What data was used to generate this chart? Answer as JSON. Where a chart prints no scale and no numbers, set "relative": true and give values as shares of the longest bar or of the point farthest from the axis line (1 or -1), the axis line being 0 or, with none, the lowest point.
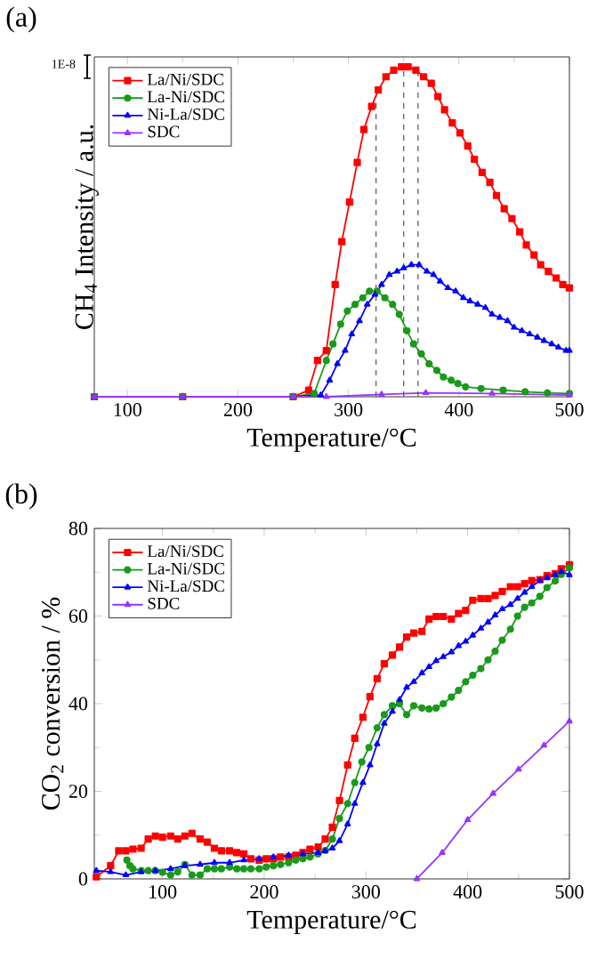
{
  "chart_data": [
    {
      "type": "line",
      "ylabel": "CH$_{4}$ Intensity / a.u.",
      "xlabel": "Temperature/°C",
      "relative": true,
      "tick_labels": "x",
      "legend": "top left",
      "annotations": [
        "(a)",
        "1E-8"
      ],
      "xlim": [
        70,
        500
      ],
      "xticks": [
        100,
        200,
        300,
        400,
        500
      ],
      "ref_lines": [
        {
          "axis": "x",
          "value": 325,
          "color": "#555555",
          "line_style": "dashed"
        },
        {
          "axis": "x",
          "value": 350,
          "color": "#555555",
          "line_style": "dashed"
        },
        {
          "axis": "x",
          "value": 363,
          "color": "#555555",
          "line_style": "dashed"
        }
      ],
      "series": [
        {
          "name": "La/Ni/SDC",
          "color": "#ff0000",
          "marker": "square",
          "x": [
            70,
            150,
            250,
            264,
            272,
            280,
            288,
            294,
            301,
            308,
            314,
            321,
            327,
            334,
            341,
            348,
            354,
            361,
            368,
            375,
            381,
            387,
            394,
            401,
            408,
            414,
            421,
            428,
            434,
            441,
            448,
            455,
            461,
            468,
            474,
            481,
            488,
            494,
            500
          ],
          "values": [
            0,
            0,
            0,
            0.02,
            0.11,
            0.14,
            0.34,
            0.47,
            0.59,
            0.71,
            0.81,
            0.88,
            0.93,
            0.97,
            0.99,
            1,
            1,
            0.99,
            0.97,
            0.95,
            0.91,
            0.87,
            0.83,
            0.8,
            0.76,
            0.72,
            0.68,
            0.65,
            0.61,
            0.57,
            0.54,
            0.5,
            0.46,
            0.43,
            0.4,
            0.38,
            0.36,
            0.34,
            0.33
          ]
        },
        {
          "name": "La-Ni/SDC",
          "color": "#1a9a1a",
          "marker": "circle",
          "x": [
            70,
            150,
            250,
            269,
            280,
            286,
            293,
            299,
            306,
            313,
            319,
            326,
            333,
            340,
            346,
            353,
            359,
            366,
            373,
            380,
            386,
            393,
            399,
            406,
            420,
            440,
            460,
            480,
            500
          ],
          "values": [
            0,
            0,
            0,
            0.01,
            0.11,
            0.16,
            0.22,
            0.26,
            0.28,
            0.3,
            0.32,
            0.32,
            0.3,
            0.28,
            0.25,
            0.2,
            0.16,
            0.13,
            0.1,
            0.08,
            0.06,
            0.05,
            0.04,
            0.03,
            0.025,
            0.02,
            0.015,
            0.012,
            0.01
          ]
        },
        {
          "name": "Ni-La/SDC",
          "color": "#0000ff",
          "marker": "triangle",
          "x": [
            70,
            150,
            250,
            275,
            283,
            290,
            297,
            303,
            310,
            317,
            324,
            330,
            337,
            344,
            350,
            357,
            364,
            371,
            377,
            383,
            390,
            397,
            404,
            410,
            417,
            424,
            430,
            437,
            444,
            450,
            457,
            464,
            471,
            477,
            484,
            490,
            497,
            500
          ],
          "values": [
            0,
            0,
            0,
            0.005,
            0.05,
            0.1,
            0.14,
            0.19,
            0.23,
            0.28,
            0.31,
            0.34,
            0.37,
            0.38,
            0.39,
            0.4,
            0.4,
            0.38,
            0.37,
            0.35,
            0.33,
            0.32,
            0.3,
            0.29,
            0.28,
            0.27,
            0.25,
            0.24,
            0.23,
            0.21,
            0.2,
            0.19,
            0.18,
            0.17,
            0.16,
            0.15,
            0.14,
            0.14
          ]
        },
        {
          "name": "SDC",
          "color": "#9933ff",
          "marker": "triangle",
          "x": [
            70,
            150,
            250,
            280,
            330,
            370,
            430,
            500
          ],
          "values": [
            0,
            0,
            0,
            0,
            0.007,
            0.012,
            0.01,
            0.005
          ]
        }
      ]
    },
    {
      "type": "line",
      "ylabel": "CO$_{2}$ conversion / %",
      "xlabel": "Temperature/°C",
      "legend": "top left",
      "annotations": [
        "(b)"
      ],
      "xlim": [
        33,
        500
      ],
      "xticks": [
        100,
        200,
        300,
        400,
        500
      ],
      "ylim": [
        0,
        80
      ],
      "yticks": [
        0,
        20,
        40,
        60,
        80
      ],
      "series": [
        {
          "name": "La/Ni/SDC",
          "color": "#ff0000",
          "marker": "square",
          "x": [
            35,
            49,
            57,
            64,
            71,
            79,
            86,
            93,
            100,
            108,
            115,
            122,
            129,
            137,
            144,
            151,
            158,
            166,
            173,
            180,
            187,
            195,
            202,
            209,
            216,
            224,
            231,
            238,
            245,
            253,
            260,
            267,
            274,
            282,
            289,
            297,
            304,
            311,
            318,
            326,
            333,
            340,
            347,
            355,
            362,
            369,
            376,
            384,
            391,
            398,
            405,
            413,
            420,
            427,
            434,
            442,
            449,
            456,
            463,
            471,
            478,
            486,
            492,
            500
          ],
          "values": [
            0.5,
            3,
            6.4,
            6.4,
            6.8,
            7,
            9.1,
            9.8,
            9.5,
            9.8,
            9.1,
            9.8,
            10.4,
            9.1,
            8.4,
            7,
            6.4,
            6.4,
            6,
            5.7,
            4.6,
            4.3,
            4.6,
            4.6,
            5,
            5,
            5.4,
            6,
            6.8,
            7.3,
            9.1,
            11.8,
            17.9,
            26,
            32.1,
            36.9,
            41.6,
            45.7,
            49.1,
            51.1,
            52.9,
            55.2,
            56.1,
            56.5,
            59.3,
            59.9,
            59.9,
            59.3,
            60.6,
            61.3,
            63.6,
            64,
            64,
            64.7,
            65.6,
            66.7,
            66.7,
            67.4,
            68.1,
            68.3,
            69.2,
            69.7,
            70.8,
            71.7
          ]
        },
        {
          "name": "La-Ni/SDC",
          "color": "#1a9a1a",
          "marker": "circle",
          "x": [
            65,
            68,
            71,
            79,
            86,
            93,
            100,
            108,
            115,
            122,
            129,
            137,
            144,
            151,
            158,
            166,
            173,
            180,
            187,
            195,
            202,
            209,
            216,
            224,
            231,
            238,
            245,
            253,
            260,
            267,
            274,
            282,
            289,
            296,
            303,
            311,
            318,
            326,
            333,
            340,
            347,
            355,
            362,
            369,
            376,
            384,
            391,
            398,
            405,
            413,
            420,
            427,
            434,
            442,
            449,
            456,
            463,
            471,
            478,
            486,
            492,
            500
          ],
          "values": [
            4.3,
            3,
            2.3,
            1.9,
            1.9,
            1.9,
            1.5,
            0.9,
            1.6,
            3.3,
            0.9,
            0.9,
            2.3,
            2.3,
            2.3,
            2.7,
            2.3,
            2.3,
            2.3,
            2.3,
            2.7,
            3,
            3.3,
            3.7,
            4.3,
            4.6,
            5,
            5.7,
            6.5,
            9.1,
            13.8,
            17.2,
            22,
            26.7,
            30,
            34.5,
            37.5,
            39.5,
            40,
            37.5,
            39.5,
            39,
            38.8,
            39,
            40,
            41.5,
            43,
            45,
            46.5,
            48,
            50,
            52,
            54.5,
            57,
            60,
            62,
            63,
            64.5,
            66.5,
            68,
            69.5,
            71
          ]
        },
        {
          "name": "Ni-La/SDC",
          "color": "#0000ff",
          "marker": "triangle",
          "x": [
            35,
            49,
            64,
            79,
            93,
            108,
            122,
            137,
            151,
            166,
            180,
            195,
            209,
            224,
            238,
            253,
            260,
            267,
            274,
            282,
            289,
            297,
            304,
            311,
            318,
            326,
            333,
            340,
            347,
            355,
            362,
            369,
            376,
            384,
            391,
            398,
            405,
            413,
            420,
            427,
            434,
            442,
            449,
            456,
            463,
            471,
            478,
            486,
            492,
            500
          ],
          "values": [
            1.9,
            1.6,
            0.9,
            1.6,
            1.9,
            2.3,
            3,
            3.3,
            3.7,
            3.7,
            4.3,
            4.6,
            5,
            5.4,
            5.7,
            6,
            6.4,
            7,
            8.7,
            12.5,
            17.2,
            22,
            26,
            30.8,
            35.5,
            38.2,
            40.9,
            43.7,
            45,
            47,
            48.4,
            49.8,
            50.7,
            51.8,
            53.2,
            54.2,
            55.6,
            57.2,
            58.6,
            60.2,
            61.6,
            62.6,
            64,
            65.4,
            66.7,
            68.1,
            68.7,
            69.4,
            70.1,
            69.4
          ]
        },
        {
          "name": "SDC",
          "color": "#9933ff",
          "marker": "triangle",
          "x": [
            350,
            375,
            400,
            425,
            450,
            475,
            500
          ],
          "values": [
            0,
            6,
            13.5,
            19.5,
            25,
            30.5,
            36
          ]
        }
      ]
    }
  ]
}
